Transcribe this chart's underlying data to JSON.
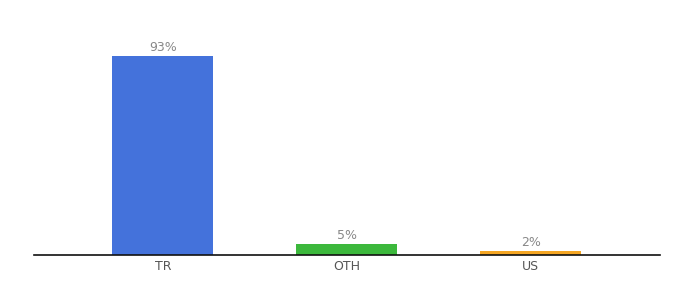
{
  "categories": [
    "TR",
    "OTH",
    "US"
  ],
  "values": [
    93,
    5,
    2
  ],
  "bar_colors": [
    "#4472db",
    "#3cb83c",
    "#f5a623"
  ],
  "labels": [
    "93%",
    "5%",
    "2%"
  ],
  "ylim": [
    0,
    105
  ],
  "background_color": "#ffffff",
  "label_fontsize": 9,
  "tick_fontsize": 9,
  "bar_width": 0.55,
  "label_color": "#888888"
}
